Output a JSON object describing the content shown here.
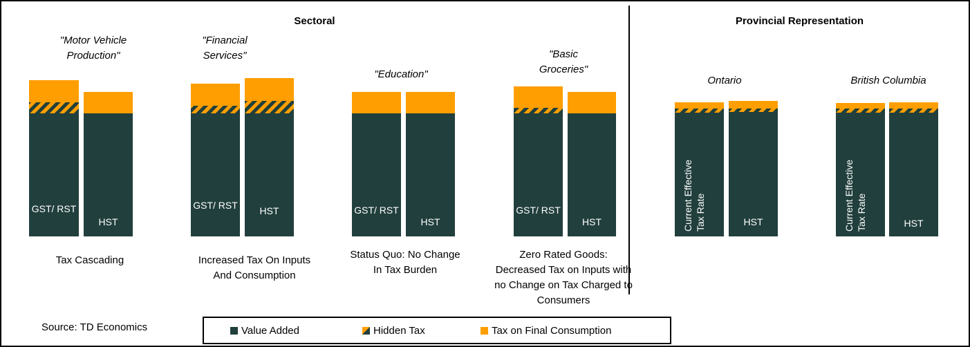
{
  "headers": {
    "sectoral": "Sectoral",
    "provincial": "Provincial Representation"
  },
  "scenarios": {
    "motor": "\"Motor Vehicle Production\"",
    "financial": "\"Financial Services\"",
    "education": "\"Education\"",
    "groceries": "\"Basic Groceries\"",
    "ontario": "Ontario",
    "bc": "British Columbia"
  },
  "bar_labels": {
    "gst_rst": "GST/ RST",
    "hst": "HST",
    "current_rate": "Current Effective Tax Rate"
  },
  "descriptions": {
    "motor": "Tax Cascading",
    "financial": "Increased Tax On Inputs And Consumption",
    "education": "Status Quo: No Change In Tax Burden",
    "groceries": "Zero Rated Goods: Decreased Tax on Inputs with no Change on Tax Charged to Consumers"
  },
  "legend": {
    "value_added": "Value Added",
    "hidden_tax": "Hidden Tax",
    "final_consumption": "Tax on Final Consumption"
  },
  "source": "Source: TD Economics",
  "colors": {
    "value_added": "#213F3D",
    "hidden_tax": "striped #213F3D/#FF9E00",
    "final_consumption": "#FF9E00"
  }
}
